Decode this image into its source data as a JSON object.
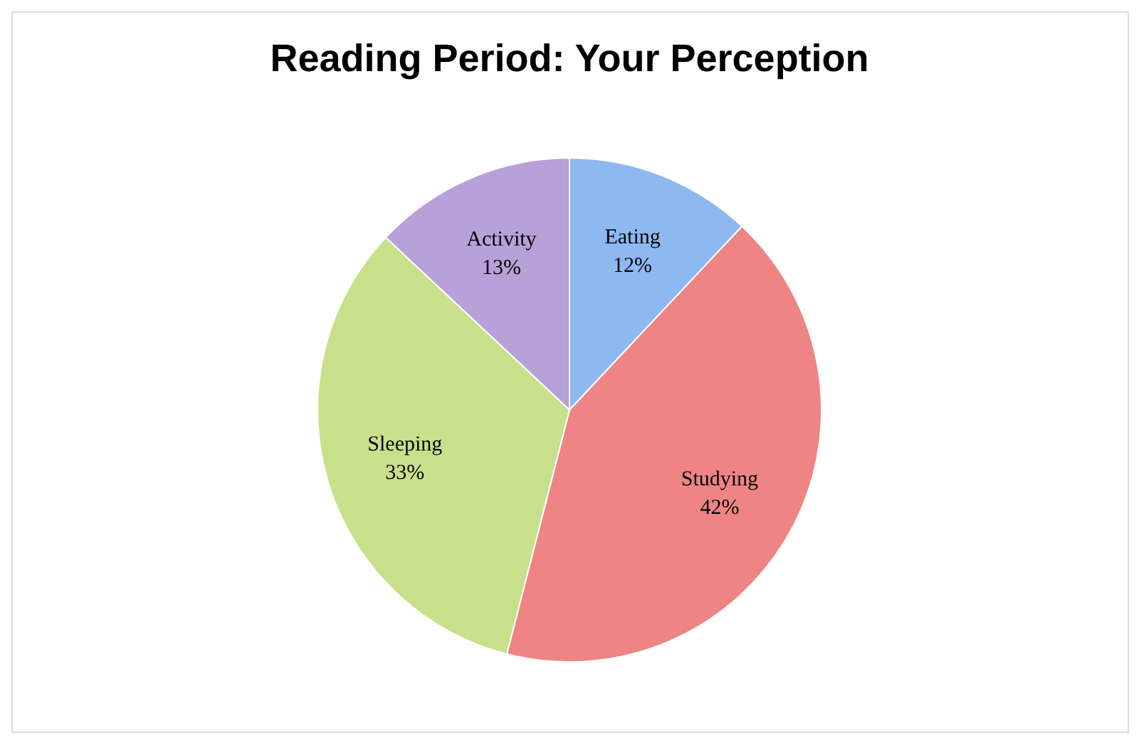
{
  "chart_data": {
    "type": "pie",
    "title": "Reading Period: Your Perception",
    "categories": [
      "Eating",
      "Studying",
      "Sleeping",
      "Activity"
    ],
    "values": [
      12,
      42,
      33,
      13
    ],
    "value_labels": [
      "12%",
      "42%",
      "33%",
      "13%"
    ],
    "colors": [
      "#8db8f0",
      "#ee8484",
      "#c8e08a",
      "#b8a0d8"
    ],
    "legend": false
  }
}
